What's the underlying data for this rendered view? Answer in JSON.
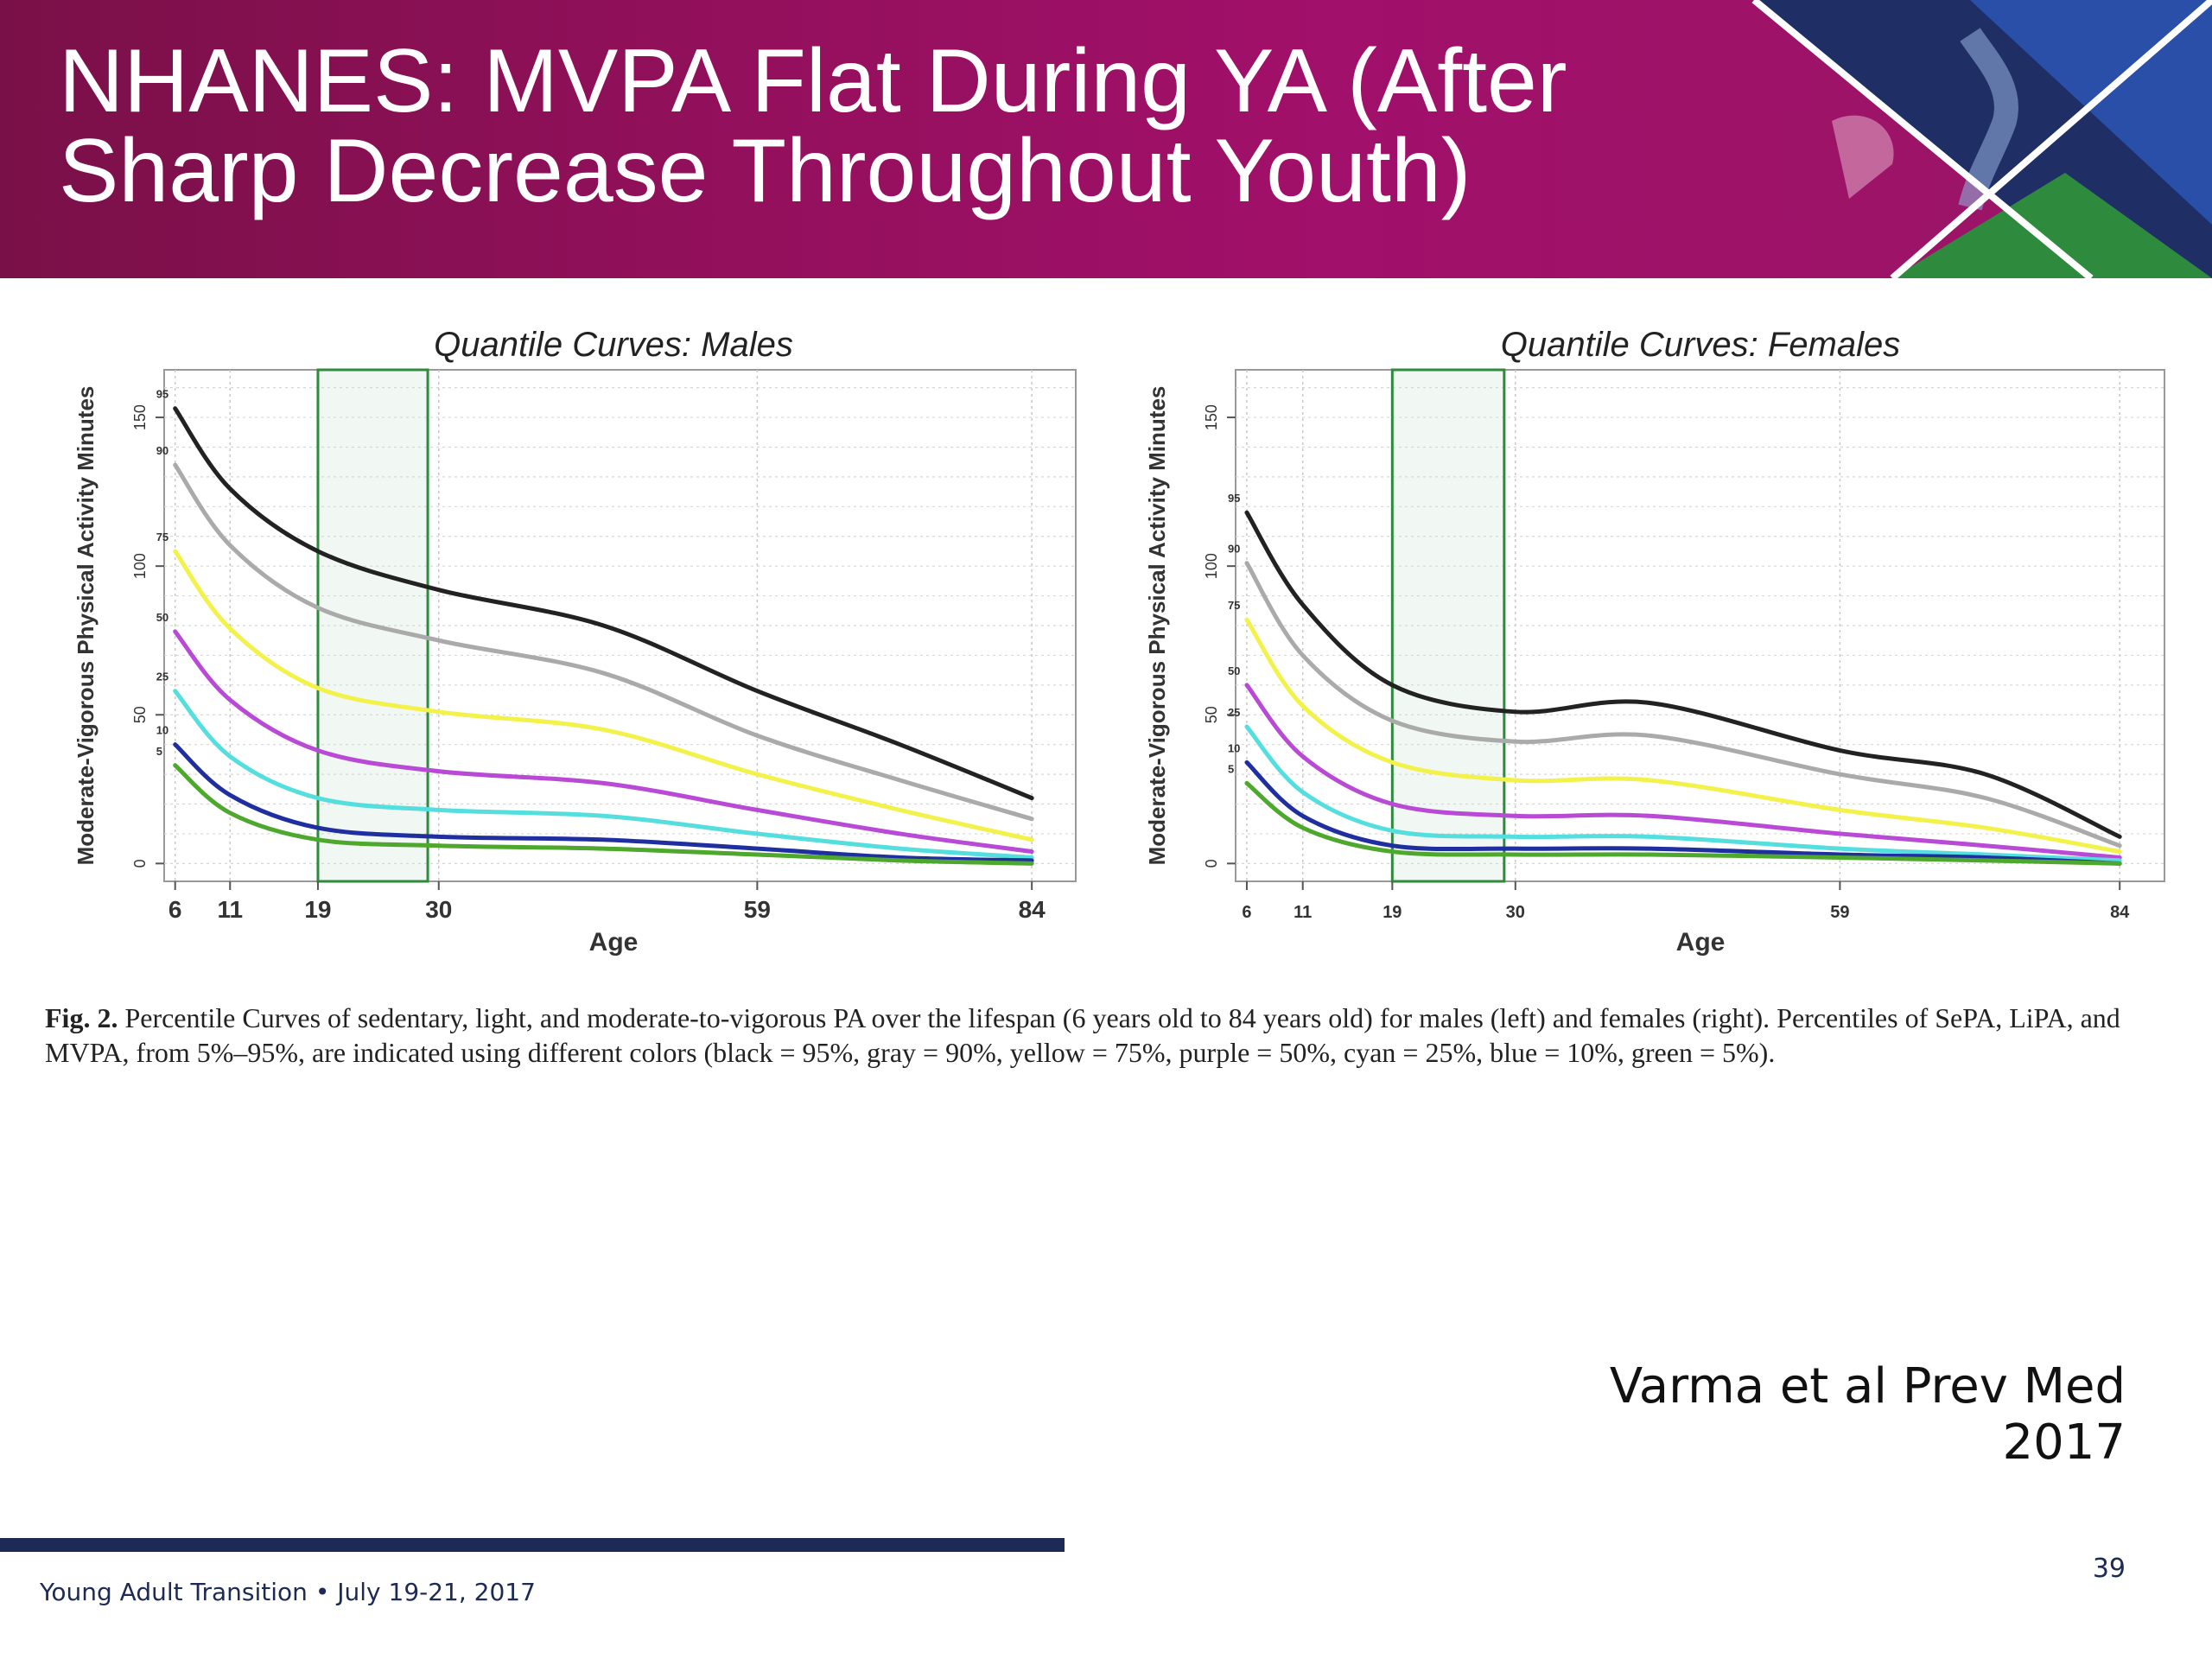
{
  "slide": {
    "title_line1": "NHANES: MVPA Flat During YA (After",
    "title_line2": "Sharp Decrease Throughout Youth)",
    "caption_label": "Fig. 2.",
    "caption_text": "Percentile Curves of sedentary, light, and moderate-to-vigorous PA over the lifespan (6 years old to 84 years old) for males (left) and females (right). Percentiles of SePA, LiPA, and MVPA, from 5%–95%, are indicated using different colors (black = 95%, gray = 90%, yellow = 75%, purple = 50%, cyan = 25%, blue = 10%, green = 5%).",
    "citation": "Varma et al Prev Med 2017",
    "footer": "Young Adult Transition • July 19-21, 2017",
    "page_number": "39"
  },
  "colors": {
    "banner": "#9a1060",
    "footer_rule": "#1c2a55",
    "highlight_box": "#2e8b3e",
    "series": {
      "95": "#222222",
      "90": "#aaaaaa",
      "75": "#f2f24a",
      "50": "#b94ad6",
      "25": "#55dede",
      "10": "#1f2fa0",
      "5": "#4ea82e"
    }
  },
  "chart_data": [
    {
      "type": "line",
      "title": "Quantile Curves: Males",
      "xlabel": "Age",
      "ylabel": "Moderate-Vigorous Physical Activity Minutes",
      "xticks": [
        6,
        11,
        19,
        30,
        59,
        84
      ],
      "yticks": [
        0,
        50,
        100,
        150
      ],
      "xlim": [
        5,
        88
      ],
      "ylim": [
        -6,
        166
      ],
      "highlight_range": [
        19,
        29
      ],
      "grid": true,
      "x": [
        6,
        11,
        19,
        30,
        45,
        59,
        72,
        84
      ],
      "series": [
        {
          "name": "95",
          "values": [
            153,
            126,
            105,
            92,
            80,
            58,
            40,
            22
          ]
        },
        {
          "name": "90",
          "values": [
            134,
            107,
            86,
            75,
            64,
            43,
            28,
            15
          ]
        },
        {
          "name": "75",
          "values": [
            105,
            79,
            59,
            51,
            45,
            30,
            18,
            8
          ]
        },
        {
          "name": "50",
          "values": [
            78,
            55,
            38,
            31,
            27,
            18,
            10,
            4
          ]
        },
        {
          "name": "25",
          "values": [
            58,
            36,
            22,
            18,
            16,
            10,
            5,
            2
          ]
        },
        {
          "name": "10",
          "values": [
            40,
            23,
            12,
            9,
            8,
            5,
            2,
            1
          ]
        },
        {
          "name": "5",
          "values": [
            33,
            17,
            8,
            6,
            5,
            3,
            1,
            0
          ]
        }
      ]
    },
    {
      "type": "line",
      "title": "Quantile Curves: Females",
      "xlabel": "Age",
      "ylabel": "Moderate-Vigorous Physical Activity Minutes",
      "xticks": [
        6,
        11,
        19,
        30,
        59,
        84
      ],
      "yticks": [
        0,
        50,
        100,
        150
      ],
      "xlim": [
        5,
        88
      ],
      "ylim": [
        -6,
        166
      ],
      "highlight_range": [
        19,
        29
      ],
      "grid": true,
      "x": [
        6,
        11,
        19,
        30,
        42,
        59,
        72,
        84
      ],
      "series": [
        {
          "name": "95",
          "values": [
            118,
            87,
            60,
            51,
            54,
            38,
            30,
            9
          ]
        },
        {
          "name": "90",
          "values": [
            101,
            70,
            48,
            41,
            43,
            30,
            22,
            6
          ]
        },
        {
          "name": "75",
          "values": [
            82,
            53,
            34,
            28,
            28,
            18,
            12,
            4
          ]
        },
        {
          "name": "50",
          "values": [
            60,
            36,
            20,
            16,
            16,
            10,
            6,
            2
          ]
        },
        {
          "name": "25",
          "values": [
            46,
            24,
            11,
            9,
            9,
            5,
            3,
            1
          ]
        },
        {
          "name": "10",
          "values": [
            34,
            16,
            6,
            5,
            5,
            3,
            2,
            0
          ]
        },
        {
          "name": "5",
          "values": [
            27,
            12,
            4,
            3,
            3,
            2,
            1,
            0
          ]
        }
      ]
    }
  ]
}
